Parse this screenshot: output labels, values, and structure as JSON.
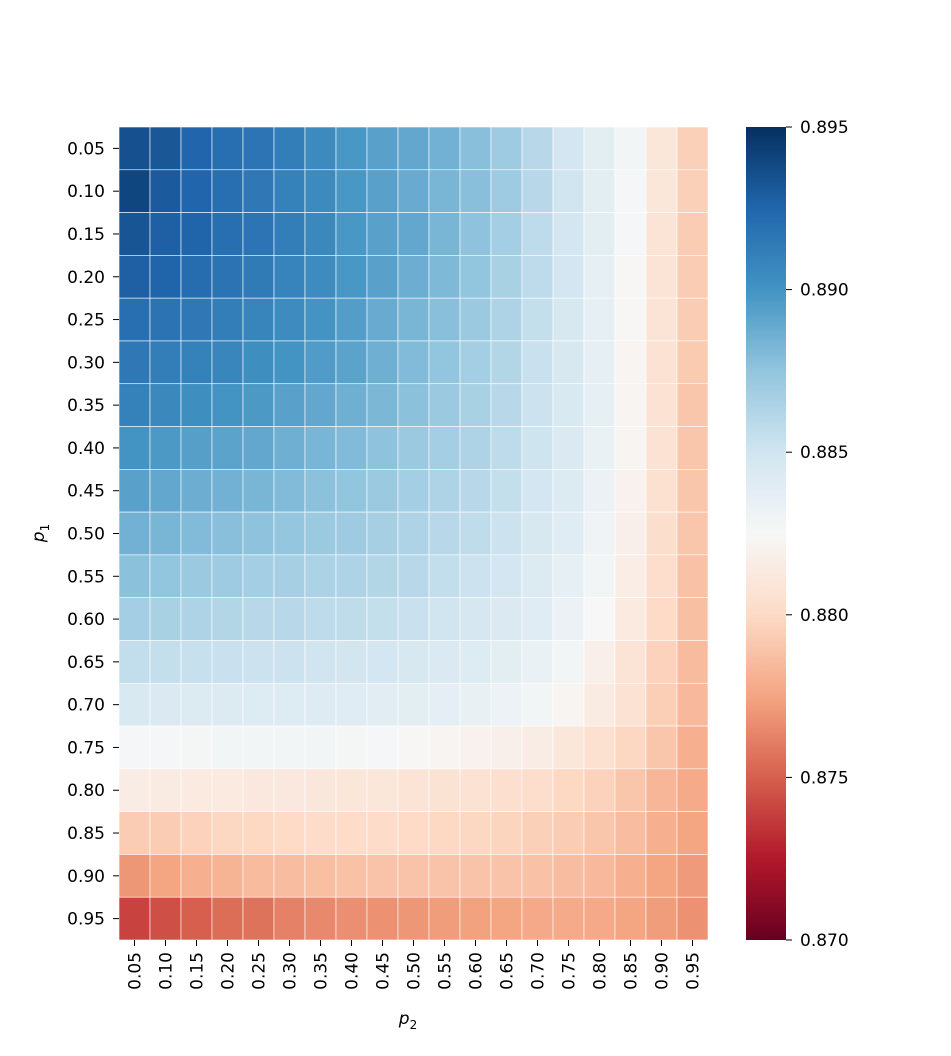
{
  "chart_data": {
    "type": "heatmap",
    "xlabel_base": "p",
    "xlabel_sub": "2",
    "ylabel_base": "p",
    "ylabel_sub": "1",
    "x_categories": [
      "0.05",
      "0.10",
      "0.15",
      "0.20",
      "0.25",
      "0.30",
      "0.35",
      "0.40",
      "0.45",
      "0.50",
      "0.55",
      "0.60",
      "0.65",
      "0.70",
      "0.75",
      "0.80",
      "0.85",
      "0.90",
      "0.95"
    ],
    "y_categories": [
      "0.05",
      "0.10",
      "0.15",
      "0.20",
      "0.25",
      "0.30",
      "0.35",
      "0.40",
      "0.45",
      "0.50",
      "0.55",
      "0.60",
      "0.65",
      "0.70",
      "0.75",
      "0.80",
      "0.85",
      "0.90",
      "0.95"
    ],
    "colorbar": {
      "vmin": 0.87,
      "vmax": 0.895,
      "ticks": [
        0.87,
        0.875,
        0.88,
        0.885,
        0.89,
        0.895
      ],
      "tick_labels": [
        "0.870",
        "0.875",
        "0.880",
        "0.885",
        "0.890",
        "0.895"
      ],
      "colormap": "RdBu"
    },
    "values": [
      [
        0.8935,
        0.8932,
        0.8925,
        0.892,
        0.8917,
        0.8912,
        0.8905,
        0.8898,
        0.8893,
        0.889,
        0.8885,
        0.8878,
        0.887,
        0.886,
        0.8848,
        0.8838,
        0.8828,
        0.881,
        0.8795
      ],
      [
        0.894,
        0.893,
        0.8925,
        0.892,
        0.8915,
        0.891,
        0.8905,
        0.8898,
        0.8893,
        0.8888,
        0.8883,
        0.8878,
        0.887,
        0.886,
        0.885,
        0.8838,
        0.8826,
        0.881,
        0.8795
      ],
      [
        0.8933,
        0.8928,
        0.8926,
        0.892,
        0.8917,
        0.8912,
        0.8906,
        0.8898,
        0.8893,
        0.889,
        0.8883,
        0.8876,
        0.8868,
        0.8858,
        0.8848,
        0.8838,
        0.8826,
        0.8808,
        0.8793
      ],
      [
        0.8928,
        0.8926,
        0.8921,
        0.8918,
        0.8914,
        0.8909,
        0.8904,
        0.8898,
        0.8893,
        0.8887,
        0.8881,
        0.8875,
        0.8866,
        0.8858,
        0.8848,
        0.8836,
        0.8824,
        0.8808,
        0.8793
      ],
      [
        0.892,
        0.8918,
        0.8915,
        0.8912,
        0.8908,
        0.8904,
        0.89,
        0.8895,
        0.8888,
        0.8883,
        0.8878,
        0.8872,
        0.8864,
        0.8855,
        0.8846,
        0.8836,
        0.8824,
        0.8808,
        0.8793
      ],
      [
        0.8915,
        0.8912,
        0.891,
        0.8907,
        0.8903,
        0.89,
        0.8896,
        0.8892,
        0.8886,
        0.888,
        0.8875,
        0.8868,
        0.8862,
        0.8853,
        0.8846,
        0.8836,
        0.8822,
        0.8806,
        0.8792
      ],
      [
        0.891,
        0.8906,
        0.8903,
        0.89,
        0.8897,
        0.8893,
        0.889,
        0.8886,
        0.8882,
        0.8877,
        0.8872,
        0.8866,
        0.886,
        0.8852,
        0.8845,
        0.8836,
        0.8822,
        0.8806,
        0.879
      ],
      [
        0.89,
        0.8897,
        0.8894,
        0.8892,
        0.889,
        0.8886,
        0.8883,
        0.888,
        0.8876,
        0.8872,
        0.8868,
        0.8864,
        0.8858,
        0.8851,
        0.8844,
        0.8834,
        0.8822,
        0.8806,
        0.879
      ],
      [
        0.8893,
        0.889,
        0.8887,
        0.8885,
        0.8883,
        0.888,
        0.8877,
        0.8875,
        0.8872,
        0.8868,
        0.8864,
        0.886,
        0.8855,
        0.8848,
        0.8843,
        0.8833,
        0.882,
        0.8805,
        0.879
      ],
      [
        0.8885,
        0.8883,
        0.888,
        0.8878,
        0.8876,
        0.8874,
        0.8872,
        0.887,
        0.8867,
        0.8864,
        0.886,
        0.8857,
        0.8852,
        0.8846,
        0.884,
        0.883,
        0.8818,
        0.8803,
        0.879
      ],
      [
        0.8877,
        0.8875,
        0.8872,
        0.887,
        0.8868,
        0.8867,
        0.8865,
        0.8864,
        0.8862,
        0.886,
        0.8856,
        0.8852,
        0.8848,
        0.8843,
        0.8836,
        0.8828,
        0.8816,
        0.8802,
        0.8788
      ],
      [
        0.8868,
        0.8866,
        0.8864,
        0.8862,
        0.886,
        0.886,
        0.8858,
        0.8857,
        0.8855,
        0.8853,
        0.885,
        0.8847,
        0.8844,
        0.884,
        0.8833,
        0.8825,
        0.8813,
        0.88,
        0.8787
      ],
      [
        0.8856,
        0.8855,
        0.8854,
        0.8853,
        0.8852,
        0.8852,
        0.885,
        0.8849,
        0.8848,
        0.8846,
        0.8844,
        0.8842,
        0.8838,
        0.8834,
        0.8828,
        0.8818,
        0.8808,
        0.8796,
        0.8785
      ],
      [
        0.8845,
        0.8844,
        0.8843,
        0.8843,
        0.8842,
        0.8842,
        0.8841,
        0.884,
        0.8839,
        0.8838,
        0.8837,
        0.8835,
        0.8832,
        0.8828,
        0.8822,
        0.8814,
        0.8806,
        0.8794,
        0.8784
      ],
      [
        0.8826,
        0.8826,
        0.8827,
        0.8828,
        0.8828,
        0.8828,
        0.8828,
        0.8827,
        0.8826,
        0.8824,
        0.8822,
        0.882,
        0.8818,
        0.8815,
        0.881,
        0.8805,
        0.8798,
        0.879,
        0.878
      ],
      [
        0.8815,
        0.8814,
        0.8813,
        0.8813,
        0.8812,
        0.8812,
        0.8811,
        0.881,
        0.881,
        0.8808,
        0.8807,
        0.8806,
        0.8804,
        0.8802,
        0.8799,
        0.8796,
        0.879,
        0.8783,
        0.8778
      ],
      [
        0.8793,
        0.8793,
        0.8796,
        0.8798,
        0.8799,
        0.88,
        0.8801,
        0.8801,
        0.8801,
        0.88,
        0.8799,
        0.8798,
        0.8797,
        0.8795,
        0.8793,
        0.879,
        0.8786,
        0.878,
        0.8775
      ],
      [
        0.877,
        0.8775,
        0.878,
        0.8782,
        0.8785,
        0.8786,
        0.8787,
        0.8788,
        0.8789,
        0.8789,
        0.8789,
        0.8789,
        0.8789,
        0.8788,
        0.8786,
        0.8784,
        0.878,
        0.8775,
        0.8771
      ],
      [
        0.874,
        0.8744,
        0.875,
        0.8755,
        0.8757,
        0.8762,
        0.8765,
        0.8767,
        0.8768,
        0.877,
        0.8772,
        0.8774,
        0.8775,
        0.8777,
        0.8778,
        0.8777,
        0.8775,
        0.8772,
        0.8768
      ]
    ]
  }
}
